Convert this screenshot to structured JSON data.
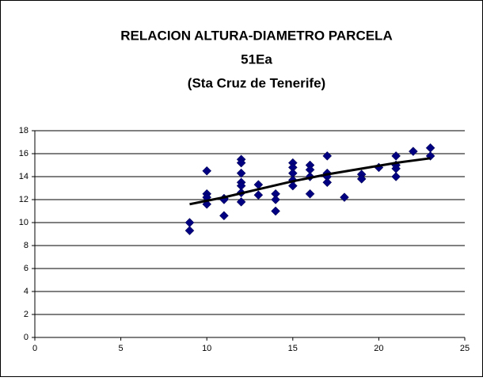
{
  "chart_data": {
    "type": "scatter",
    "title": [
      "RELACION ALTURA-DIAMETRO PARCELA",
      "51Ea",
      "(Sta Cruz de Tenerife)"
    ],
    "x": [
      9,
      9,
      10,
      10,
      10,
      10,
      11,
      11,
      11,
      12,
      12,
      12,
      12,
      12,
      12,
      12,
      13,
      13,
      14,
      14,
      14,
      15,
      15,
      15,
      15,
      15,
      16,
      16,
      16,
      16,
      17,
      17,
      17,
      17,
      18,
      19,
      19,
      20,
      21,
      21,
      21,
      21,
      22,
      23,
      23
    ],
    "values": [
      10.0,
      9.3,
      14.5,
      12.5,
      12.2,
      11.6,
      12.1,
      10.6,
      12.0,
      15.5,
      15.2,
      14.3,
      13.5,
      13.2,
      12.6,
      11.8,
      13.3,
      12.4,
      12.5,
      12.0,
      11.0,
      15.2,
      14.8,
      14.3,
      13.7,
      13.2,
      15.0,
      14.6,
      14.0,
      12.5,
      15.8,
      14.3,
      14.0,
      13.5,
      12.2,
      14.2,
      13.8,
      14.8,
      15.8,
      15.0,
      14.7,
      14.0,
      16.2,
      16.5,
      15.8
    ],
    "color": "#000080",
    "trendline": {
      "x": [
        9,
        11,
        13,
        15,
        17,
        19,
        21,
        23
      ],
      "values": [
        11.6,
        12.2,
        12.9,
        13.6,
        14.2,
        14.7,
        15.2,
        15.6
      ],
      "color": "#000000"
    },
    "xlim": [
      0,
      25
    ],
    "xticks": [
      0,
      5,
      10,
      15,
      20,
      25
    ],
    "ylim": [
      0,
      18
    ],
    "yticks": [
      0,
      2,
      4,
      6,
      8,
      10,
      12,
      14,
      16,
      18
    ],
    "grid": true
  }
}
